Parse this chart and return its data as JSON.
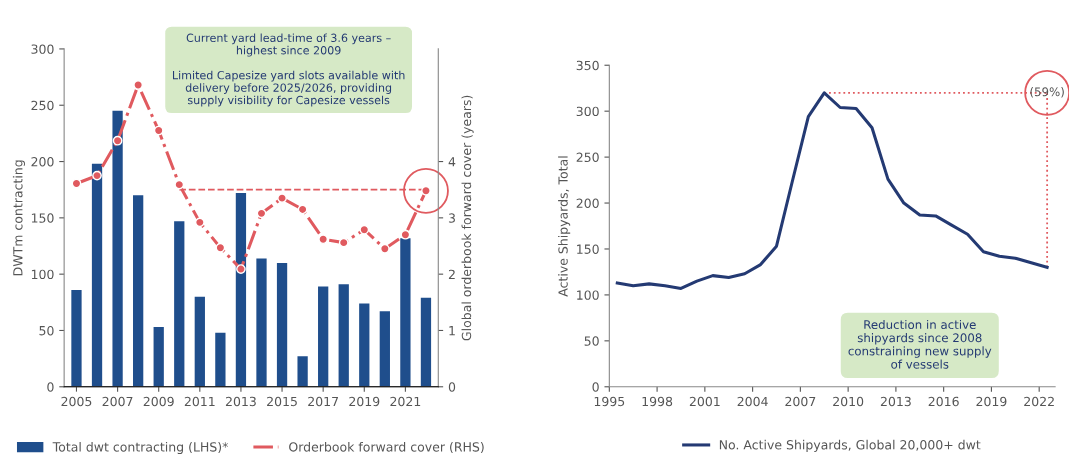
{
  "chart_data": [
    {
      "type": "bar",
      "ylabel": "DWTm contracting",
      "y2label": "Global orderbook forward cover (years)",
      "categories": [
        "2005",
        null,
        "2007",
        null,
        "2009",
        null,
        "2011",
        null,
        "2013",
        null,
        "2015",
        null,
        "2017",
        null,
        "2019",
        null,
        "2021",
        null
      ],
      "series": [
        {
          "name": "Total dwt contracting (LHS)*",
          "color": "#1f4e8c",
          "type": "bar",
          "values": [
            86,
            198,
            245,
            170,
            53,
            147,
            80,
            48,
            172,
            114,
            110,
            27,
            89,
            91,
            74,
            67,
            132,
            79
          ]
        },
        {
          "name": "Orderbook forward cover (RHS)",
          "color": "#e05a5f",
          "type": "line",
          "axis": "y2",
          "marker": "circle",
          "line_style": "dashdot",
          "values": [
            3.61,
            3.75,
            4.37,
            5.36,
            4.55,
            3.59,
            2.92,
            2.47,
            2.09,
            3.08,
            3.35,
            3.15,
            2.62,
            2.56,
            2.79,
            2.45,
            2.7,
            3.48
          ]
        }
      ],
      "ylim": [
        0,
        300
      ],
      "yticks": [
        0,
        50,
        100,
        150,
        200,
        250,
        300
      ],
      "y2lim": [
        0,
        6
      ],
      "y2ticks": [
        0,
        1,
        2,
        3,
        4
      ],
      "ref_lines": [
        {
          "axis": "y2",
          "value": 3.5,
          "color": "#e05a5f",
          "line_style": "dashed"
        }
      ],
      "annotations": [
        "Current yard lead-time of 3.6 years –\nhighest since 2009\n\nLimited Capesize yard slots available with\ndelivery before 2025/2026, providing\nsupply visibility for Capesize vessels"
      ],
      "grid": false,
      "legend": "bottom"
    },
    {
      "type": "line",
      "ylabel": "Active Shipyards, Total",
      "x": [
        1995.5,
        1996.5,
        1997.5,
        1998.5,
        1999.5,
        2000.5,
        2001.5,
        2002.5,
        2003.5,
        2004.5,
        2005.5,
        2006.5,
        2007.5,
        2008.5,
        2009.5,
        2010.5,
        2011.5,
        2012.5,
        2013.5,
        2014.5,
        2015.5,
        2016.5,
        2017.5,
        2018.5,
        2019.5,
        2020.5,
        2021.5,
        2022.5
      ],
      "series": [
        {
          "name": "No. Active Shipyards, Global 20,000+ dwt",
          "color": "#243a73",
          "values": [
            113,
            110,
            112,
            110,
            107,
            115,
            121,
            119,
            123,
            133,
            153,
            224,
            294,
            320,
            304,
            303,
            282,
            226,
            200,
            187,
            186,
            176,
            166,
            147,
            142,
            140,
            135,
            130
          ]
        }
      ],
      "xlim": [
        1995,
        2023
      ],
      "xticks": [
        1995,
        1998,
        2001,
        2004,
        2007,
        2010,
        2013,
        2016,
        2019,
        2022
      ],
      "ylim": [
        0,
        350
      ],
      "yticks": [
        0,
        50,
        100,
        150,
        200,
        250,
        300,
        350
      ],
      "ref_lines": [
        {
          "axis": "y",
          "value": 320,
          "color": "#e05a5f",
          "line_style": "dotted"
        },
        {
          "axis": "x",
          "value": 2022.5,
          "color": "#e05a5f",
          "line_style": "dotted"
        }
      ],
      "annotations": [
        "(59%)",
        "Reduction in active\nshipyards since 2008\nconstraining new supply\nof vessels"
      ],
      "grid": false,
      "legend": "bottom",
      "marker": "none",
      "line_style": "solid"
    }
  ]
}
